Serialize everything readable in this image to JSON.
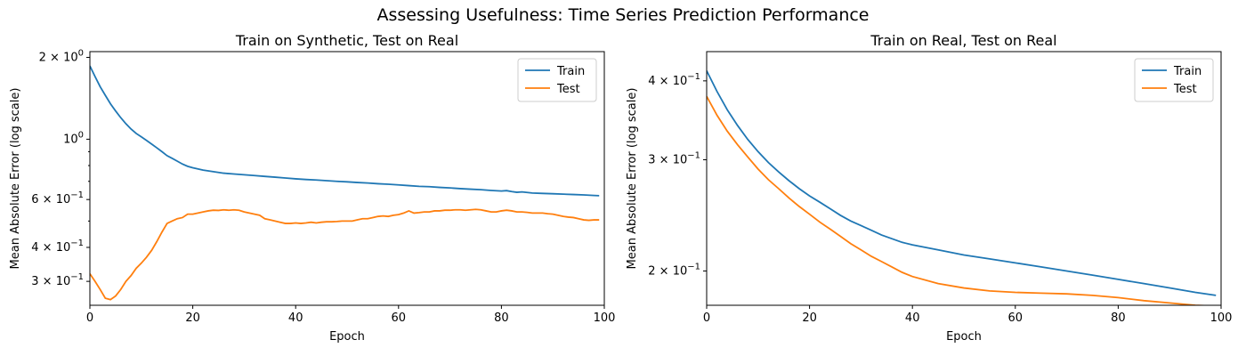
{
  "figure": {
    "suptitle": "Assessing Usefulness: Time Series Prediction Performance"
  },
  "chart_data": [
    {
      "type": "line",
      "title": "Train on Synthetic, Test on Real",
      "xlabel": "Epoch",
      "ylabel": "Mean Absolute Error (log scale)",
      "yscale": "log",
      "xlim": [
        0,
        100
      ],
      "ylim": [
        0.245,
        2.1
      ],
      "x_ticks": [
        0,
        20,
        40,
        60,
        80,
        100
      ],
      "y_ticks": [
        {
          "value": 2.0,
          "base": "2 × 10",
          "exp": "0"
        },
        {
          "value": 1.0,
          "base": "10",
          "exp": "0"
        },
        {
          "value": 0.6,
          "base": "6 × 10",
          "exp": "−1"
        },
        {
          "value": 0.4,
          "base": "4 × 10",
          "exp": "−1"
        },
        {
          "value": 0.3,
          "base": "3 × 10",
          "exp": "−1"
        }
      ],
      "y_minor_ticks": [
        0.5,
        0.7,
        0.8,
        0.9
      ],
      "legend": {
        "position": "upper right",
        "entries": [
          "Train",
          "Test"
        ]
      },
      "series": [
        {
          "name": "Train",
          "color": "#1f77b4",
          "x": [
            0,
            1,
            2,
            3,
            4,
            5,
            6,
            7,
            8,
            9,
            10,
            11,
            12,
            13,
            14,
            15,
            16,
            17,
            18,
            19,
            20,
            22,
            24,
            26,
            28,
            30,
            32,
            34,
            36,
            38,
            40,
            42,
            44,
            46,
            48,
            50,
            52,
            54,
            56,
            58,
            60,
            62,
            64,
            66,
            68,
            70,
            72,
            74,
            76,
            78,
            80,
            81,
            82,
            83,
            84,
            85,
            86,
            88,
            90,
            92,
            94,
            96,
            98,
            99
          ],
          "y": [
            1.86,
            1.7,
            1.56,
            1.45,
            1.35,
            1.27,
            1.2,
            1.14,
            1.09,
            1.05,
            1.02,
            0.99,
            0.96,
            0.93,
            0.9,
            0.87,
            0.85,
            0.83,
            0.81,
            0.795,
            0.785,
            0.77,
            0.76,
            0.75,
            0.745,
            0.74,
            0.735,
            0.73,
            0.725,
            0.72,
            0.715,
            0.711,
            0.708,
            0.704,
            0.7,
            0.697,
            0.693,
            0.69,
            0.686,
            0.683,
            0.679,
            0.675,
            0.671,
            0.669,
            0.665,
            0.662,
            0.658,
            0.655,
            0.652,
            0.648,
            0.645,
            0.647,
            0.642,
            0.638,
            0.64,
            0.637,
            0.634,
            0.632,
            0.63,
            0.628,
            0.626,
            0.624,
            0.621,
            0.62
          ]
        },
        {
          "name": "Test",
          "color": "#ff7f0e",
          "x": [
            0,
            1,
            2,
            3,
            4,
            5,
            6,
            7,
            8,
            9,
            10,
            11,
            12,
            13,
            14,
            15,
            16,
            17,
            18,
            19,
            20,
            21,
            22,
            23,
            24,
            25,
            26,
            27,
            28,
            29,
            30,
            31,
            32,
            33,
            34,
            35,
            36,
            37,
            38,
            39,
            40,
            41,
            42,
            43,
            44,
            45,
            46,
            47,
            48,
            49,
            50,
            51,
            52,
            53,
            54,
            55,
            56,
            57,
            58,
            59,
            60,
            61,
            62,
            63,
            64,
            65,
            66,
            67,
            68,
            69,
            70,
            71,
            72,
            73,
            74,
            75,
            76,
            77,
            78,
            79,
            80,
            81,
            82,
            83,
            84,
            85,
            86,
            87,
            88,
            89,
            90,
            91,
            92,
            93,
            94,
            95,
            96,
            97,
            98,
            99
          ],
          "y": [
            0.32,
            0.3,
            0.28,
            0.26,
            0.257,
            0.265,
            0.28,
            0.3,
            0.315,
            0.335,
            0.35,
            0.368,
            0.39,
            0.42,
            0.455,
            0.49,
            0.5,
            0.51,
            0.515,
            0.53,
            0.53,
            0.535,
            0.54,
            0.545,
            0.548,
            0.547,
            0.55,
            0.548,
            0.55,
            0.548,
            0.54,
            0.535,
            0.53,
            0.525,
            0.51,
            0.505,
            0.5,
            0.495,
            0.49,
            0.49,
            0.492,
            0.49,
            0.492,
            0.495,
            0.492,
            0.495,
            0.497,
            0.497,
            0.498,
            0.5,
            0.5,
            0.5,
            0.505,
            0.51,
            0.51,
            0.515,
            0.52,
            0.522,
            0.52,
            0.525,
            0.528,
            0.535,
            0.545,
            0.535,
            0.537,
            0.54,
            0.54,
            0.545,
            0.545,
            0.548,
            0.548,
            0.55,
            0.55,
            0.548,
            0.55,
            0.552,
            0.55,
            0.545,
            0.54,
            0.54,
            0.545,
            0.548,
            0.545,
            0.54,
            0.54,
            0.538,
            0.535,
            0.535,
            0.535,
            0.532,
            0.53,
            0.525,
            0.52,
            0.517,
            0.515,
            0.51,
            0.505,
            0.503,
            0.505,
            0.505
          ]
        }
      ]
    },
    {
      "type": "line",
      "title": "Train on Real, Test on Real",
      "xlabel": "Epoch",
      "ylabel": "Mean Absolute Error (log scale)",
      "yscale": "log",
      "xlim": [
        0,
        100
      ],
      "ylim": [
        0.1765,
        0.445
      ],
      "x_ticks": [
        0,
        20,
        40,
        60,
        80,
        100
      ],
      "y_ticks": [
        {
          "value": 0.4,
          "base": "4 × 10",
          "exp": "−1"
        },
        {
          "value": 0.3,
          "base": "3 × 10",
          "exp": "−1"
        },
        {
          "value": 0.2,
          "base": "2 × 10",
          "exp": "−1"
        }
      ],
      "y_minor_ticks": [],
      "legend": {
        "position": "upper right",
        "entries": [
          "Train",
          "Test"
        ]
      },
      "series": [
        {
          "name": "Train",
          "color": "#1f77b4",
          "x": [
            0,
            2,
            4,
            6,
            8,
            10,
            12,
            14,
            16,
            18,
            20,
            22,
            24,
            26,
            28,
            30,
            32,
            34,
            36,
            38,
            40,
            45,
            50,
            55,
            60,
            65,
            70,
            75,
            80,
            85,
            90,
            95,
            99
          ],
          "y": [
            0.415,
            0.385,
            0.36,
            0.34,
            0.323,
            0.309,
            0.297,
            0.287,
            0.278,
            0.27,
            0.263,
            0.257,
            0.251,
            0.245,
            0.24,
            0.236,
            0.232,
            0.228,
            0.225,
            0.222,
            0.22,
            0.216,
            0.212,
            0.209,
            0.206,
            0.203,
            0.2,
            0.197,
            0.194,
            0.191,
            0.188,
            0.185,
            0.183
          ]
        },
        {
          "name": "Test",
          "color": "#ff7f0e",
          "x": [
            0,
            2,
            4,
            6,
            8,
            10,
            12,
            14,
            16,
            18,
            20,
            22,
            24,
            26,
            28,
            30,
            32,
            34,
            36,
            38,
            40,
            45,
            50,
            55,
            60,
            65,
            70,
            75,
            80,
            85,
            90,
            95,
            99
          ],
          "y": [
            0.378,
            0.353,
            0.333,
            0.317,
            0.303,
            0.29,
            0.279,
            0.27,
            0.261,
            0.253,
            0.246,
            0.239,
            0.233,
            0.227,
            0.221,
            0.216,
            0.211,
            0.207,
            0.203,
            0.199,
            0.196,
            0.191,
            0.188,
            0.186,
            0.185,
            0.1845,
            0.184,
            0.183,
            0.1815,
            0.1795,
            0.178,
            0.1765,
            0.176
          ]
        }
      ]
    }
  ]
}
